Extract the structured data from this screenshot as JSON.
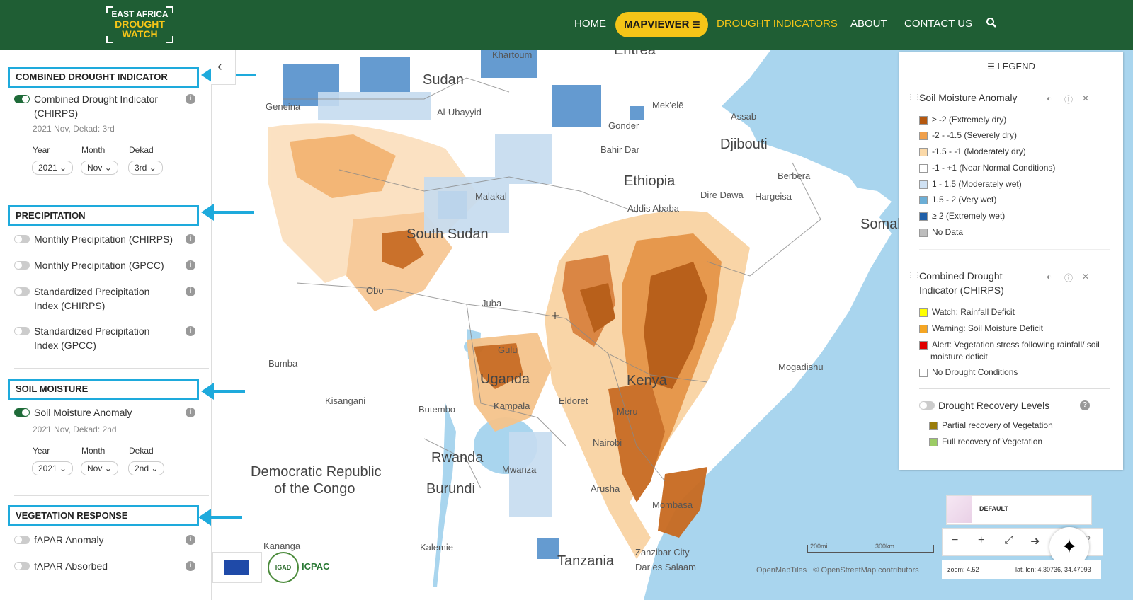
{
  "header": {
    "logo": {
      "line1": "EAST AFRICA",
      "line2": "DROUGHT",
      "line3": "WATCH"
    },
    "nav": {
      "home": "HOME",
      "mapviewer": "MAPVIEWER",
      "drought_indicators": "DROUGHT INDICATORS",
      "about": "ABOUT",
      "contact": "CONTACT US"
    },
    "icons": {
      "search": "search-icon",
      "layers": "layers-icon"
    }
  },
  "sidebar": {
    "sections": {
      "cdi": {
        "title": "COMBINED DROUGHT INDICATOR"
      },
      "precip": {
        "title": "PRECIPITATION"
      },
      "soil": {
        "title": "SOIL MOISTURE"
      },
      "veg": {
        "title": "VEGETATION RESPONSE"
      }
    },
    "cdi_layer": {
      "label": "Combined Drought Indicator (CHIRPS)",
      "meta": "2021 Nov, Dekad: 3rd",
      "year_label": "Year",
      "month_label": "Month",
      "dekad_label": "Dekad",
      "year": "2021",
      "month": "Nov",
      "dekad": "3rd"
    },
    "precip_layers": [
      "Monthly Precipitation (CHIRPS)",
      "Monthly Precipitation (GPCC)",
      "Standardized Precipitation Index (CHIRPS)",
      "Standardized Precipitation Index (GPCC)"
    ],
    "soil_layer": {
      "label": "Soil Moisture Anomaly",
      "meta": "2021 Nov, Dekad: 2nd",
      "year_label": "Year",
      "month_label": "Month",
      "dekad_label": "Dekad",
      "year": "2021",
      "month": "Nov",
      "dekad": "2nd"
    },
    "veg_layers": [
      "fAPAR Anomaly",
      "fAPAR Absorbed"
    ],
    "logos": {
      "icpac": "ICPAC",
      "igad": "IGAD"
    },
    "accent": "#1eaadc"
  },
  "map": {
    "labels": {
      "khartoum": "Khartoum",
      "eritrea": "Eritrea",
      "sudan": "Sudan",
      "geneina": "Geneina",
      "al_ubayyid": "Al-Ubayyid",
      "mekele": "Mek'elē",
      "assab": "Assab",
      "gonder": "Gonder",
      "bahir_dar": "Bahir Dar",
      "djibouti": "Djibouti",
      "ethiopia": "Ethiopia",
      "berbera": "Berbera",
      "malakal": "Malakal",
      "dire_dawa": "Dire Dawa",
      "hargeisa": "Hargeisa",
      "addis": "Addis Ababa",
      "south_sudan": "South Sudan",
      "somal": "Somal",
      "obo": "Obo",
      "juba": "Juba",
      "gulu": "Gulu",
      "uganda": "Uganda",
      "mogadishu": "Mogadishu",
      "bumba": "Bumba",
      "kenya": "Kenya",
      "kisangani": "Kisangani",
      "butembo": "Butembo",
      "kampala": "Kampala",
      "eldoret": "Eldoret",
      "meru": "Meru",
      "nairobi": "Nairobi",
      "drc1": "Democratic Republic",
      "drc2": "of the Congo",
      "rwanda": "Rwanda",
      "mwanza": "Mwanza",
      "burundi": "Burundi",
      "arusha": "Arusha",
      "mombasa": "Mombasa",
      "kananga": "Kananga",
      "kalemie": "Kalemie",
      "zanzibar": "Zanzibar City",
      "dar": "Dar es Salaam",
      "tanzania": "Tanzania"
    },
    "scale": {
      "mi": "200mi",
      "km": "300km"
    },
    "attribution": {
      "omt": "OpenMapTiles",
      "osm": "© OpenStreetMap contributors"
    },
    "basemap": "DEFAULT",
    "status": {
      "zoom": "zoom: 4.52",
      "latlon": "lat, lon: 4.30736, 34.47093"
    }
  },
  "legend": {
    "header": "LEGEND",
    "soil": {
      "title": "Soil Moisture Anomaly",
      "items": [
        {
          "label": "≥ -2 (Extremely dry)",
          "color": "#b5580f"
        },
        {
          "label": "-2 - -1.5 (Severely dry)",
          "color": "#f0a04b"
        },
        {
          "label": "-1.5 - -1 (Moderately dry)",
          "color": "#fbd9a8"
        },
        {
          "label": "-1 - +1 (Near Normal Conditions)",
          "color": "#ffffff"
        },
        {
          "label": "1 - 1.5 (Moderately wet)",
          "color": "#cfe1f3"
        },
        {
          "label": "1.5 - 2 (Very wet)",
          "color": "#6baed6"
        },
        {
          "label": "≥ 2 (Extremely wet)",
          "color": "#1f5fa8"
        },
        {
          "label": "No Data",
          "color": "#bdbdbd"
        }
      ]
    },
    "cdi": {
      "title": "Combined Drought Indicator (CHIRPS)",
      "items": [
        {
          "label": "Watch: Rainfall Deficit",
          "color": "#ffff00"
        },
        {
          "label": "Warning: Soil Moisture Deficit",
          "color": "#f5a623"
        },
        {
          "label": "Alert: Vegetation stress following rainfall/ soil moisture deficit",
          "color": "#e00000"
        },
        {
          "label": "No Drought Conditions",
          "color": "#ffffff"
        }
      ]
    },
    "recovery": {
      "title": "Drought Recovery Levels",
      "items": [
        {
          "label": "Partial recovery of Vegetation",
          "color": "#9a7d0a"
        },
        {
          "label": "Full recovery of Vegetation",
          "color": "#9ccc65"
        }
      ]
    }
  }
}
